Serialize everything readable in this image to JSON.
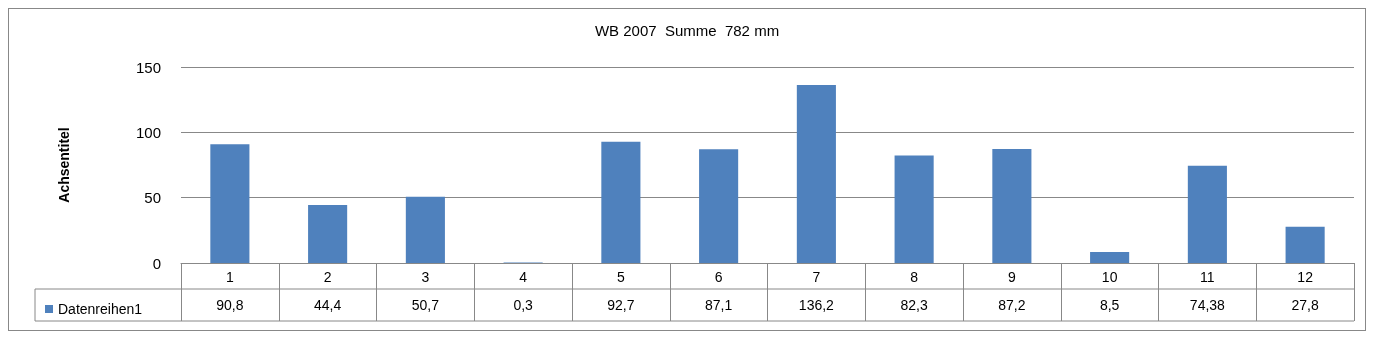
{
  "chart_data": {
    "type": "bar",
    "title": "WB 2007  Summe  782 mm",
    "ylabel": "Achsentitel",
    "categories": [
      "1",
      "2",
      "3",
      "4",
      "5",
      "6",
      "7",
      "8",
      "9",
      "10",
      "11",
      "12"
    ],
    "series": [
      {
        "name": "Datenreihen1",
        "color": "#4f81bd",
        "values": [
          90.8,
          44.4,
          50.7,
          0.3,
          92.7,
          87.1,
          136.2,
          82.3,
          87.2,
          8.5,
          74.38,
          27.8
        ],
        "value_labels": [
          "90,8",
          "44,4",
          "50,7",
          "0,3",
          "92,7",
          "87,1",
          "136,2",
          "82,3",
          "87,2",
          "8,5",
          "74,38",
          "27,8"
        ]
      }
    ],
    "ylim": [
      0,
      150
    ],
    "yticks": [
      0,
      50,
      100,
      150
    ],
    "grid": "y",
    "legend": "bottom left"
  }
}
